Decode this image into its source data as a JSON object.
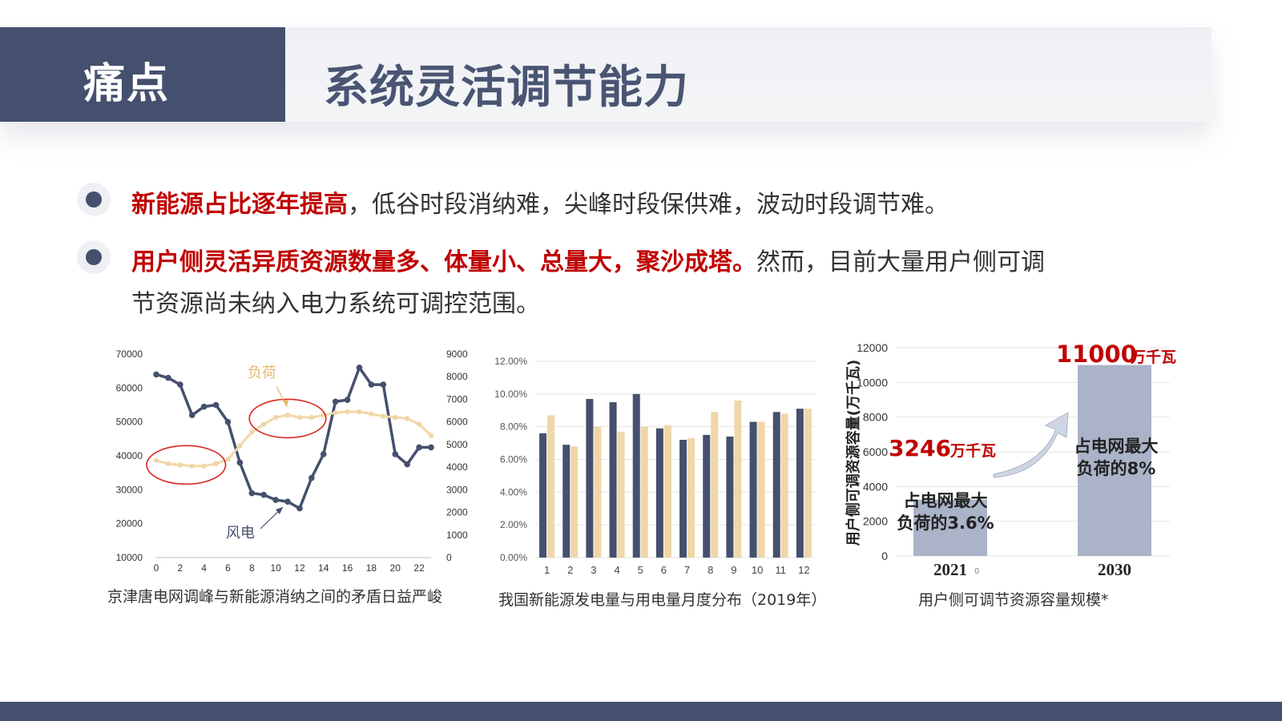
{
  "header": {
    "tag": "痛点",
    "title": "系统灵活调节能力"
  },
  "bullets": [
    {
      "highlight": "新能源占比逐年提高",
      "text": "，低谷时段消纳难，尖峰时段保供难，波动时段调节难。"
    },
    {
      "highlight": "用户侧灵活异质资源数量多、体量小、总量大，聚沙成塔。",
      "text": "然而，目前大量用户侧可调",
      "text2": "节资源尚未纳入电力系统可调控范围。"
    }
  ],
  "colors": {
    "navy": "#45506e",
    "tan": "#f0d7a8",
    "red": "#c00000",
    "gray_bar": "#aab3c8"
  },
  "chart_data": [
    {
      "type": "line",
      "caption": "京津唐电网调峰与新能源消纳之间的矛盾日益严峻",
      "x": [
        0,
        1,
        2,
        3,
        4,
        5,
        6,
        7,
        8,
        9,
        10,
        11,
        12,
        13,
        14,
        15,
        16,
        17,
        18,
        19,
        20,
        21,
        22,
        23
      ],
      "x_ticks": [
        "0",
        "2",
        "4",
        "6",
        "8",
        "10",
        "12",
        "14",
        "16",
        "18",
        "20",
        "22"
      ],
      "left_ticks": [
        "70000",
        "60000",
        "50000",
        "40000",
        "30000",
        "20000",
        "10000"
      ],
      "right_ticks": [
        "9000",
        "8000",
        "7000",
        "6000",
        "5000",
        "4000",
        "3000",
        "2000",
        "1000",
        "0"
      ],
      "left_ylim": [
        10000,
        70000
      ],
      "right_ylim": [
        0,
        9000
      ],
      "series": [
        {
          "name": "风电",
          "axis": "left",
          "color": "#45506e",
          "values": [
            64000,
            63000,
            61000,
            52000,
            54500,
            55000,
            50000,
            38000,
            29000,
            28500,
            27000,
            26500,
            24500,
            33500,
            40500,
            56000,
            56500,
            66000,
            61000,
            61000,
            40500,
            37500,
            42500,
            42500
          ]
        },
        {
          "name": "负荷",
          "axis": "right",
          "color": "#f0d7a8",
          "values": [
            4300,
            4150,
            4100,
            4050,
            4050,
            4150,
            4350,
            4950,
            5550,
            5900,
            6200,
            6300,
            6200,
            6200,
            6300,
            6400,
            6450,
            6450,
            6350,
            6250,
            6200,
            6150,
            5900,
            5400
          ]
        }
      ],
      "labels": {
        "load": "负荷",
        "wind": "风电"
      }
    },
    {
      "type": "bar",
      "caption": "我国新能源发电量与用电量月度分布（2019年）",
      "categories": [
        "1",
        "2",
        "3",
        "4",
        "5",
        "6",
        "7",
        "8",
        "9",
        "10",
        "11",
        "12"
      ],
      "y_ticks": [
        "12.00%",
        "10.00%",
        "8.00%",
        "6.00%",
        "4.00%",
        "2.00%",
        "0.00%"
      ],
      "ylim": [
        0,
        12
      ],
      "series": [
        {
          "color": "#45506e",
          "values": [
            7.6,
            6.9,
            9.7,
            9.5,
            10.0,
            7.9,
            7.2,
            7.5,
            7.4,
            8.3,
            8.9,
            9.1
          ]
        },
        {
          "color": "#f0d7a8",
          "values": [
            8.7,
            6.8,
            8.0,
            7.7,
            8.0,
            8.1,
            7.3,
            8.9,
            9.6,
            8.3,
            8.8,
            9.1
          ]
        }
      ]
    },
    {
      "type": "bar",
      "caption": "用户侧可调节资源容量规模*",
      "ylabel": "用户侧可调资源容量(万千瓦)",
      "categories": [
        "2021",
        "2030"
      ],
      "values": [
        3246,
        11000
      ],
      "ylim": [
        0,
        12000
      ],
      "y_ticks": [
        "12000",
        "10000",
        "8000",
        "6000",
        "4000",
        "2000",
        "0"
      ],
      "annotations": [
        {
          "value": "3246",
          "unit": "万千瓦",
          "note1": "占电网最大",
          "note2": "负荷的3.6%"
        },
        {
          "value": "11000",
          "unit": "万千瓦",
          "note1": "占电网最大",
          "note2": "负荷的8%"
        }
      ],
      "stray_text": "0"
    }
  ]
}
